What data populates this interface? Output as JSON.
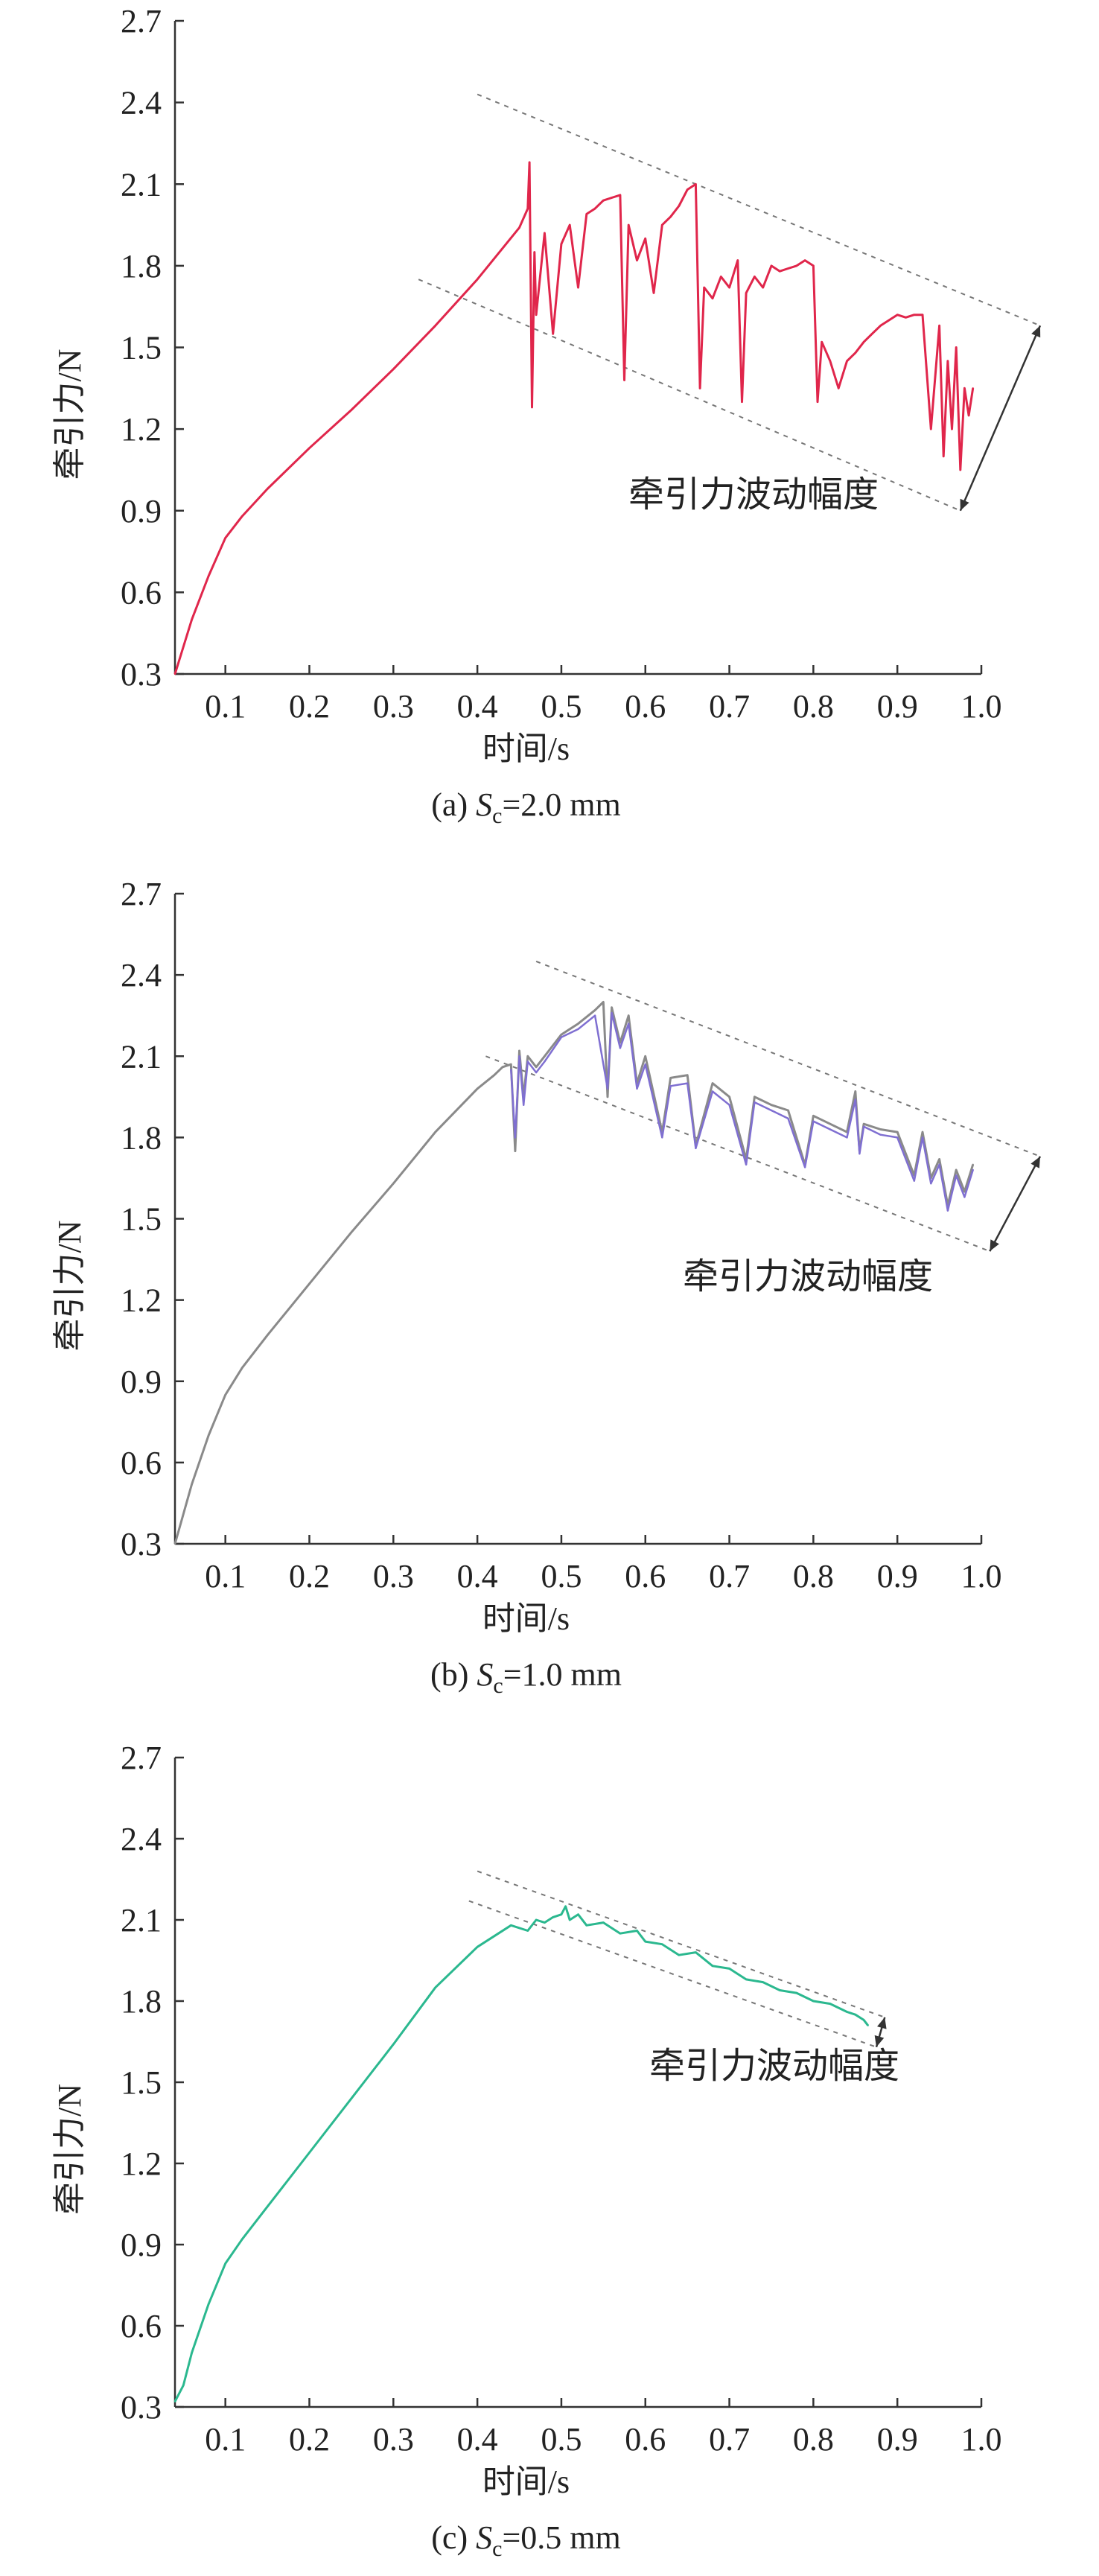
{
  "chart_data": [
    {
      "type": "line",
      "caption_prefix": "(a) ",
      "caption_var": "S",
      "caption_sub": "c",
      "caption_value": "=2.0 mm",
      "xlabel": "时间/s",
      "ylabel": "牵引力/N",
      "annotation": "牵引力波动幅度",
      "line_color": "#e0264b",
      "band_color": "#777777",
      "xlim": [
        0.04,
        1.0
      ],
      "ylim": [
        0.3,
        2.7
      ],
      "x_ticks": [
        "0.1",
        "0.2",
        "0.3",
        "0.4",
        "0.5",
        "0.6",
        "0.7",
        "0.8",
        "0.9",
        "1.0"
      ],
      "y_ticks": [
        "0.3",
        "0.6",
        "0.9",
        "1.2",
        "1.5",
        "1.8",
        "2.1",
        "2.4",
        "2.7"
      ],
      "upper_band": [
        [
          0.4,
          2.43
        ],
        [
          1.07,
          1.58
        ]
      ],
      "lower_band": [
        [
          0.33,
          1.75
        ],
        [
          0.975,
          0.9
        ]
      ],
      "series": [
        {
          "x": [
            0.04,
            0.06,
            0.08,
            0.1,
            0.12,
            0.15,
            0.2,
            0.25,
            0.3,
            0.35,
            0.4,
            0.45,
            0.46,
            0.462,
            0.465,
            0.468,
            0.47,
            0.48,
            0.49,
            0.5,
            0.51,
            0.52,
            0.53,
            0.54,
            0.55,
            0.56,
            0.57,
            0.575,
            0.58,
            0.59,
            0.6,
            0.61,
            0.62,
            0.63,
            0.64,
            0.65,
            0.66,
            0.665,
            0.67,
            0.68,
            0.69,
            0.7,
            0.71,
            0.715,
            0.72,
            0.73,
            0.74,
            0.75,
            0.76,
            0.77,
            0.78,
            0.79,
            0.8,
            0.805,
            0.81,
            0.82,
            0.83,
            0.84,
            0.85,
            0.86,
            0.87,
            0.88,
            0.89,
            0.9,
            0.91,
            0.92,
            0.93,
            0.94,
            0.95,
            0.955,
            0.96,
            0.965,
            0.97,
            0.975,
            0.98,
            0.985,
            0.99
          ],
          "y": [
            0.3,
            0.5,
            0.66,
            0.8,
            0.88,
            0.98,
            1.13,
            1.27,
            1.42,
            1.58,
            1.75,
            1.94,
            2.01,
            2.18,
            1.28,
            1.85,
            1.62,
            1.92,
            1.55,
            1.88,
            1.95,
            1.72,
            1.99,
            2.01,
            2.04,
            2.05,
            2.06,
            1.38,
            1.95,
            1.82,
            1.9,
            1.7,
            1.95,
            1.98,
            2.02,
            2.08,
            2.1,
            1.35,
            1.72,
            1.68,
            1.76,
            1.72,
            1.82,
            1.3,
            1.7,
            1.76,
            1.72,
            1.8,
            1.78,
            1.79,
            1.8,
            1.82,
            1.8,
            1.3,
            1.52,
            1.45,
            1.35,
            1.45,
            1.48,
            1.52,
            1.55,
            1.58,
            1.6,
            1.62,
            1.61,
            1.62,
            1.62,
            1.2,
            1.58,
            1.1,
            1.45,
            1.2,
            1.5,
            1.05,
            1.35,
            1.25,
            1.35
          ]
        }
      ]
    },
    {
      "type": "line",
      "caption_prefix": "(b) ",
      "caption_var": "S",
      "caption_sub": "c",
      "caption_value": "=1.0 mm",
      "xlabel": "时间/s",
      "ylabel": "牵引力/N",
      "annotation": "牵引力波动幅度",
      "line_color": "#888888",
      "band_color": "#777777",
      "xlim": [
        0.04,
        1.0
      ],
      "ylim": [
        0.3,
        2.7
      ],
      "x_ticks": [
        "0.1",
        "0.2",
        "0.3",
        "0.4",
        "0.5",
        "0.6",
        "0.7",
        "0.8",
        "0.9",
        "1.0"
      ],
      "y_ticks": [
        "0.3",
        "0.6",
        "0.9",
        "1.2",
        "1.5",
        "1.8",
        "2.1",
        "2.4",
        "2.7"
      ],
      "upper_band": [
        [
          0.47,
          2.45
        ],
        [
          1.07,
          1.73
        ]
      ],
      "lower_band": [
        [
          0.41,
          2.1
        ],
        [
          1.01,
          1.38
        ]
      ],
      "series": [
        {
          "x": [
            0.04,
            0.06,
            0.08,
            0.1,
            0.12,
            0.15,
            0.2,
            0.25,
            0.3,
            0.35,
            0.4,
            0.42,
            0.43,
            0.44,
            0.445,
            0.45,
            0.455,
            0.46,
            0.47,
            0.48,
            0.5,
            0.52,
            0.54,
            0.55,
            0.555,
            0.56,
            0.57,
            0.58,
            0.59,
            0.6,
            0.62,
            0.63,
            0.65,
            0.66,
            0.68,
            0.7,
            0.72,
            0.73,
            0.75,
            0.77,
            0.79,
            0.8,
            0.82,
            0.84,
            0.85,
            0.855,
            0.86,
            0.88,
            0.9,
            0.92,
            0.93,
            0.94,
            0.95,
            0.96,
            0.97,
            0.98,
            0.99
          ],
          "y": [
            0.3,
            0.52,
            0.7,
            0.85,
            0.95,
            1.07,
            1.26,
            1.45,
            1.63,
            1.82,
            1.98,
            2.03,
            2.06,
            2.07,
            1.75,
            2.12,
            1.95,
            2.1,
            2.06,
            2.1,
            2.18,
            2.22,
            2.27,
            2.3,
            1.95,
            2.28,
            2.15,
            2.25,
            2.0,
            2.1,
            1.82,
            2.02,
            2.03,
            1.77,
            2.0,
            1.95,
            1.72,
            1.95,
            1.92,
            1.9,
            1.7,
            1.88,
            1.85,
            1.82,
            1.97,
            1.75,
            1.85,
            1.83,
            1.82,
            1.66,
            1.82,
            1.65,
            1.72,
            1.55,
            1.68,
            1.6,
            1.7
          ]
        },
        {
          "x": [
            0.44,
            0.445,
            0.45,
            0.455,
            0.46,
            0.47,
            0.48,
            0.5,
            0.52,
            0.54,
            0.555,
            0.56,
            0.57,
            0.58,
            0.59,
            0.6,
            0.62,
            0.63,
            0.65,
            0.66,
            0.68,
            0.7,
            0.72,
            0.73,
            0.75,
            0.77,
            0.79,
            0.8,
            0.82,
            0.84,
            0.85,
            0.855,
            0.86,
            0.88,
            0.9,
            0.92,
            0.93,
            0.94,
            0.95,
            0.96,
            0.97,
            0.98,
            0.99
          ],
          "y": [
            2.05,
            1.8,
            2.1,
            1.92,
            2.08,
            2.04,
            2.08,
            2.17,
            2.2,
            2.25,
            1.98,
            2.26,
            2.13,
            2.22,
            1.98,
            2.07,
            1.8,
            1.99,
            2.0,
            1.76,
            1.97,
            1.92,
            1.7,
            1.93,
            1.9,
            1.87,
            1.69,
            1.86,
            1.83,
            1.8,
            1.94,
            1.74,
            1.84,
            1.81,
            1.8,
            1.64,
            1.8,
            1.63,
            1.7,
            1.53,
            1.66,
            1.58,
            1.68
          ]
        }
      ]
    },
    {
      "type": "line",
      "caption_prefix": "(c) ",
      "caption_var": "S",
      "caption_sub": "c",
      "caption_value": "=0.5 mm",
      "xlabel": "时间/s",
      "ylabel": "牵引力/N",
      "annotation": "牵引力波动幅度",
      "line_color": "#2bb88f",
      "band_color": "#777777",
      "xlim": [
        0.04,
        1.0
      ],
      "ylim": [
        0.3,
        2.7
      ],
      "x_ticks": [
        "0.1",
        "0.2",
        "0.3",
        "0.4",
        "0.5",
        "0.6",
        "0.7",
        "0.8",
        "0.9",
        "1.0"
      ],
      "y_ticks": [
        "0.3",
        "0.6",
        "0.9",
        "1.2",
        "1.5",
        "1.8",
        "2.1",
        "2.4",
        "2.7"
      ],
      "upper_band": [
        [
          0.4,
          2.28
        ],
        [
          0.885,
          1.74
        ]
      ],
      "lower_band": [
        [
          0.39,
          2.17
        ],
        [
          0.875,
          1.63
        ]
      ],
      "series": [
        {
          "x": [
            0.04,
            0.05,
            0.06,
            0.08,
            0.1,
            0.12,
            0.15,
            0.2,
            0.25,
            0.3,
            0.35,
            0.4,
            0.44,
            0.46,
            0.47,
            0.48,
            0.49,
            0.5,
            0.505,
            0.51,
            0.52,
            0.53,
            0.55,
            0.57,
            0.59,
            0.6,
            0.62,
            0.64,
            0.66,
            0.68,
            0.7,
            0.72,
            0.74,
            0.76,
            0.78,
            0.8,
            0.82,
            0.84,
            0.85,
            0.86,
            0.865
          ],
          "y": [
            0.32,
            0.38,
            0.5,
            0.68,
            0.83,
            0.92,
            1.04,
            1.24,
            1.44,
            1.64,
            1.85,
            2.0,
            2.08,
            2.06,
            2.1,
            2.09,
            2.11,
            2.12,
            2.15,
            2.1,
            2.12,
            2.08,
            2.09,
            2.05,
            2.06,
            2.02,
            2.01,
            1.97,
            1.98,
            1.93,
            1.92,
            1.88,
            1.87,
            1.84,
            1.83,
            1.8,
            1.79,
            1.76,
            1.75,
            1.73,
            1.71
          ]
        }
      ]
    }
  ]
}
